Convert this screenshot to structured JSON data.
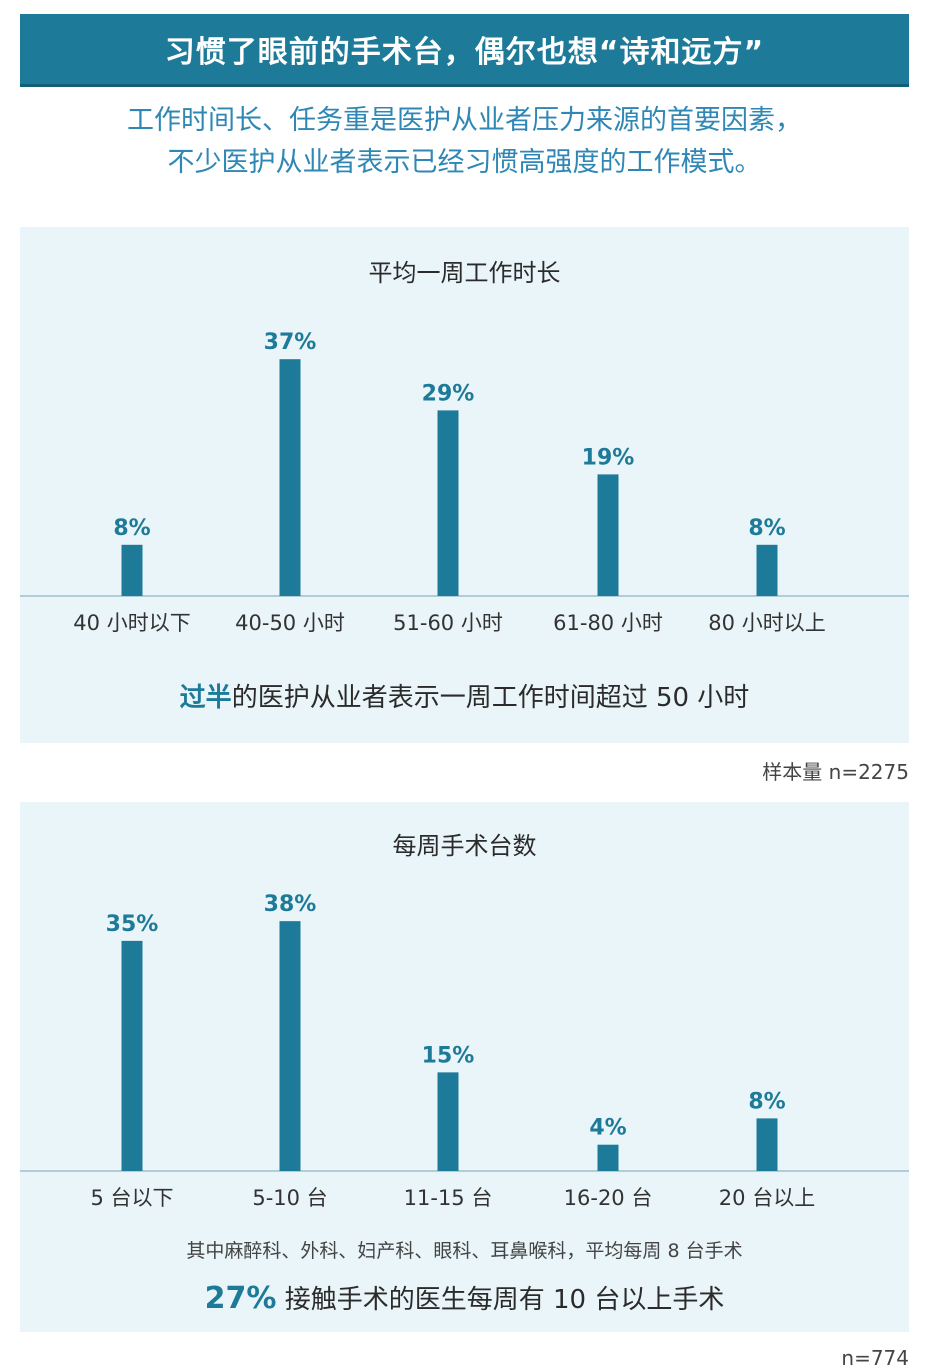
{
  "header": {
    "banner_title": "习惯了眼前的手术台，偶尔也想“诗和远方”",
    "subtitle_line1": "工作时间长、任务重是医护从业者压力来源的首要因素，",
    "subtitle_line2": "不少医护从业者表示已经习惯高强度的工作模式。"
  },
  "colors": {
    "accent": "#1d7a99",
    "panel_bg": "#e9f5f8",
    "subtitle": "#2e87b5"
  },
  "chart_data": [
    {
      "type": "bar",
      "title": "平均一周工作时长",
      "categories": [
        "40 小时以下",
        "40-50 小时",
        "51-60 小时",
        "61-80 小时",
        "80 小时以上"
      ],
      "values": [
        8,
        37,
        29,
        19,
        8
      ],
      "value_labels": [
        "8%",
        "37%",
        "29%",
        "19%",
        "8%"
      ],
      "ylim": [
        0,
        40
      ],
      "grid": false,
      "conclusion_highlight": "过半",
      "conclusion_rest": "的医护从业者表示一周工作时间超过 50 小时",
      "sample_size": "样本量 n=2275"
    },
    {
      "type": "bar",
      "title": "每周手术台数",
      "categories": [
        "5 台以下",
        "5-10 台",
        "11-15 台",
        "16-20 台",
        "20 台以上"
      ],
      "values": [
        35,
        38,
        15,
        4,
        8
      ],
      "value_labels": [
        "35%",
        "38%",
        "15%",
        "4%",
        "8%"
      ],
      "ylim": [
        0,
        40
      ],
      "grid": false,
      "footnote": "其中麻醉科、外科、妇产科、眼科、耳鼻喉科，平均每周 8 台手术",
      "conclusion_highlight": "27%",
      "conclusion_rest": " 接触手术的医生每周有 10 台以上手术",
      "sample_size": "n=774"
    }
  ]
}
